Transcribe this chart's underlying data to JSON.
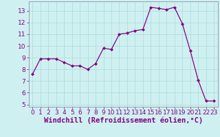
{
  "x": [
    0,
    1,
    2,
    3,
    4,
    5,
    6,
    7,
    8,
    9,
    10,
    11,
    12,
    13,
    14,
    15,
    16,
    17,
    18,
    19,
    20,
    21,
    22,
    23
  ],
  "y": [
    7.6,
    8.9,
    8.9,
    8.9,
    8.6,
    8.3,
    8.3,
    8.0,
    8.5,
    9.8,
    9.7,
    11.0,
    11.1,
    11.3,
    11.4,
    13.3,
    13.2,
    13.1,
    13.3,
    11.9,
    9.6,
    7.1,
    5.3,
    5.3
  ],
  "line_color": "#800080",
  "marker": "D",
  "marker_size": 2.0,
  "line_width": 0.9,
  "bg_color": "#cff0f0",
  "grid_color": "#aadada",
  "xlabel": "Windchill (Refroidissement éolien,°C)",
  "xlabel_fontsize": 7.5,
  "xlim": [
    -0.5,
    23.5
  ],
  "ylim": [
    4.8,
    13.8
  ],
  "yticks": [
    5,
    6,
    7,
    8,
    9,
    10,
    11,
    12,
    13
  ],
  "xticks": [
    0,
    1,
    2,
    3,
    4,
    5,
    6,
    7,
    8,
    9,
    10,
    11,
    12,
    13,
    14,
    15,
    16,
    17,
    18,
    19,
    20,
    21,
    22,
    23
  ],
  "tick_fontsize": 6.5,
  "tick_color": "#800080",
  "border_color": "#9090b0"
}
